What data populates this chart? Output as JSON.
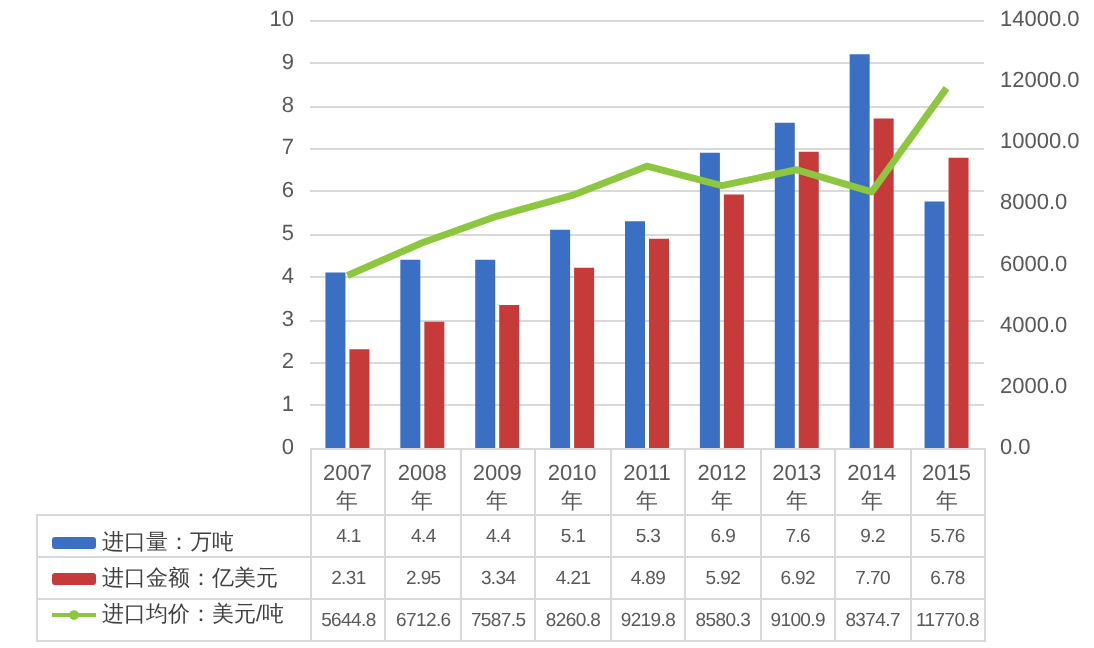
{
  "chart_data": {
    "type": "bar",
    "categories": [
      "2007年",
      "2008年",
      "2009年",
      "2010年",
      "2011年",
      "2012年",
      "2013年",
      "2014年",
      "2015年"
    ],
    "series": [
      {
        "name": "进口量：万吨",
        "color": "#3a6fc4",
        "values": [
          4.1,
          4.4,
          4.4,
          5.1,
          5.3,
          6.9,
          7.6,
          9.2,
          5.76
        ],
        "value_labels": [
          "4.1",
          "4.4",
          "4.4",
          "5.1",
          "5.3",
          "6.9",
          "7.6",
          "9.2",
          "5.76"
        ]
      },
      {
        "name": "进口金额：亿美元",
        "color": "#c63a3a",
        "values": [
          2.31,
          2.95,
          3.34,
          4.21,
          4.89,
          5.92,
          6.92,
          7.7,
          6.78
        ],
        "value_labels": [
          "2.31",
          "2.95",
          "3.34",
          "4.21",
          "4.89",
          "5.92",
          "6.92",
          "7.70",
          "6.78"
        ]
      },
      {
        "name": "进口均价：美元/吨",
        "type": "line",
        "axis": "y2",
        "color": "#8dc63f",
        "values": [
          5644.8,
          6712.6,
          7587.5,
          8260.8,
          9219.8,
          8580.3,
          9100.9,
          8374.7,
          11770.8
        ],
        "value_labels": [
          "5644.8",
          "6712.6",
          "7587.5",
          "8260.8",
          "9219.8",
          "8580.3",
          "9100.9",
          "8374.7",
          "11770.8"
        ]
      }
    ],
    "ylim": [
      0,
      10
    ],
    "yticks": [
      0,
      1,
      2,
      3,
      4,
      5,
      6,
      7,
      8,
      9,
      10
    ],
    "y2lim": [
      0,
      14000
    ],
    "y2ticks": [
      {
        "value": 0,
        "label": "0.0"
      },
      {
        "value": 2000,
        "label": "2000.0"
      },
      {
        "value": 4000,
        "label": "4000.0"
      },
      {
        "value": 6000,
        "label": "6000.0"
      },
      {
        "value": 8000,
        "label": "8000.0"
      },
      {
        "value": 10000,
        "label": "10000.0"
      },
      {
        "value": 12000,
        "label": "12000.0"
      },
      {
        "value": 14000,
        "label": "14000.0"
      }
    ],
    "grid": "y",
    "legend": "bottom left"
  }
}
